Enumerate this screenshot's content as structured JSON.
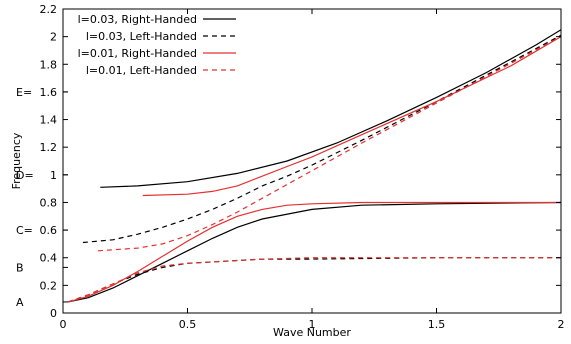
{
  "chart_data": {
    "type": "line",
    "xlabel": "Wave Number",
    "ylabel": "Frequency",
    "xlim": [
      0,
      2
    ],
    "ylim": [
      0,
      2.2
    ],
    "x_ticks": [
      {
        "v": 0,
        "label": "0"
      },
      {
        "v": 0.5,
        "label": "0.5"
      },
      {
        "v": 1,
        "label": "1"
      },
      {
        "v": 1.5,
        "label": "1.5"
      },
      {
        "v": 2,
        "label": "2"
      }
    ],
    "y_ticks": [
      {
        "v": 0,
        "label": "0"
      },
      {
        "v": 0.2,
        "label": "0.2"
      },
      {
        "v": 0.4,
        "label": "0.4"
      },
      {
        "v": 0.6,
        "label": "0.6"
      },
      {
        "v": 0.8,
        "label": "0.8"
      },
      {
        "v": 1.0,
        "label": "1"
      },
      {
        "v": 1.2,
        "label": "1.2"
      },
      {
        "v": 1.4,
        "label": "1.4"
      },
      {
        "v": 1.6,
        "label": "1.6"
      },
      {
        "v": 1.8,
        "label": "1.8"
      },
      {
        "v": 2.0,
        "label": "2"
      },
      {
        "v": 2.2,
        "label": "2.2"
      }
    ],
    "y_markers": [
      {
        "v": 0.08,
        "label": "A"
      },
      {
        "v": 0.33,
        "label": "B"
      },
      {
        "v": 0.6,
        "label": "C="
      },
      {
        "v": 1.0,
        "label": "D="
      },
      {
        "v": 1.6,
        "label": "E="
      }
    ],
    "grid": false,
    "legend_position": "top-left",
    "series": [
      {
        "name": "l=0.03, Right-Handed",
        "color": "#000000",
        "dash": "solid",
        "x": [
          0.15,
          0.3,
          0.5,
          0.7,
          0.9,
          1.1,
          1.3,
          1.5,
          1.7,
          1.9,
          2.0
        ],
        "y": [
          0.91,
          0.92,
          0.95,
          1.01,
          1.1,
          1.23,
          1.39,
          1.56,
          1.74,
          1.94,
          2.05
        ]
      },
      {
        "name": "",
        "color": "#000000",
        "dash": "solid",
        "x": [
          0.02,
          0.1,
          0.2,
          0.3,
          0.4,
          0.5,
          0.6,
          0.7,
          0.8,
          1.0,
          1.2,
          1.5,
          2.0
        ],
        "y": [
          0.08,
          0.11,
          0.18,
          0.27,
          0.36,
          0.45,
          0.54,
          0.62,
          0.68,
          0.75,
          0.78,
          0.79,
          0.8
        ]
      },
      {
        "name": "l=0.03, Left-Handed",
        "color": "#000000",
        "dash": "dashed",
        "x": [
          0.08,
          0.2,
          0.3,
          0.4,
          0.5,
          0.6,
          0.7,
          0.8,
          0.9,
          1.0,
          1.2,
          1.5,
          2.0
        ],
        "y": [
          0.51,
          0.53,
          0.57,
          0.62,
          0.68,
          0.75,
          0.83,
          0.92,
          0.99,
          1.07,
          1.25,
          1.53,
          2.01
        ]
      },
      {
        "name": "",
        "color": "#000000",
        "dash": "dashed",
        "x": [
          0.02,
          0.1,
          0.2,
          0.3,
          0.4,
          0.5,
          0.6,
          0.8,
          1.0,
          1.5,
          2.0
        ],
        "y": [
          0.08,
          0.13,
          0.21,
          0.28,
          0.33,
          0.36,
          0.37,
          0.39,
          0.39,
          0.4,
          0.4
        ]
      },
      {
        "name": "l=0.01, Right-Handed",
        "color": "#e53030",
        "dash": "solid",
        "x": [
          0.32,
          0.5,
          0.6,
          0.7,
          0.8,
          0.9,
          1.0,
          1.2,
          1.5,
          1.8,
          2.0
        ],
        "y": [
          0.85,
          0.86,
          0.88,
          0.92,
          0.99,
          1.06,
          1.13,
          1.29,
          1.53,
          1.79,
          2.0
        ]
      },
      {
        "name": "",
        "color": "#e53030",
        "dash": "solid",
        "x": [
          0.02,
          0.1,
          0.2,
          0.3,
          0.4,
          0.5,
          0.6,
          0.7,
          0.8,
          0.9,
          1.0,
          1.2,
          1.5,
          2.0
        ],
        "y": [
          0.08,
          0.12,
          0.2,
          0.3,
          0.41,
          0.52,
          0.62,
          0.7,
          0.75,
          0.78,
          0.79,
          0.8,
          0.8,
          0.8
        ]
      },
      {
        "name": "l=0.01, Left-Handed",
        "color": "#e53030",
        "dash": "dashed",
        "x": [
          0.14,
          0.3,
          0.4,
          0.5,
          0.6,
          0.7,
          0.8,
          0.9,
          1.0,
          1.2,
          1.5,
          2.0
        ],
        "y": [
          0.45,
          0.47,
          0.5,
          0.56,
          0.64,
          0.73,
          0.83,
          0.93,
          1.03,
          1.23,
          1.52,
          2.0
        ]
      },
      {
        "name": "",
        "color": "#e53030",
        "dash": "dashed",
        "x": [
          0.02,
          0.1,
          0.2,
          0.3,
          0.4,
          0.5,
          0.6,
          0.8,
          1.0,
          1.5,
          2.0
        ],
        "y": [
          0.08,
          0.13,
          0.21,
          0.29,
          0.34,
          0.36,
          0.37,
          0.39,
          0.4,
          0.4,
          0.4
        ]
      }
    ]
  }
}
